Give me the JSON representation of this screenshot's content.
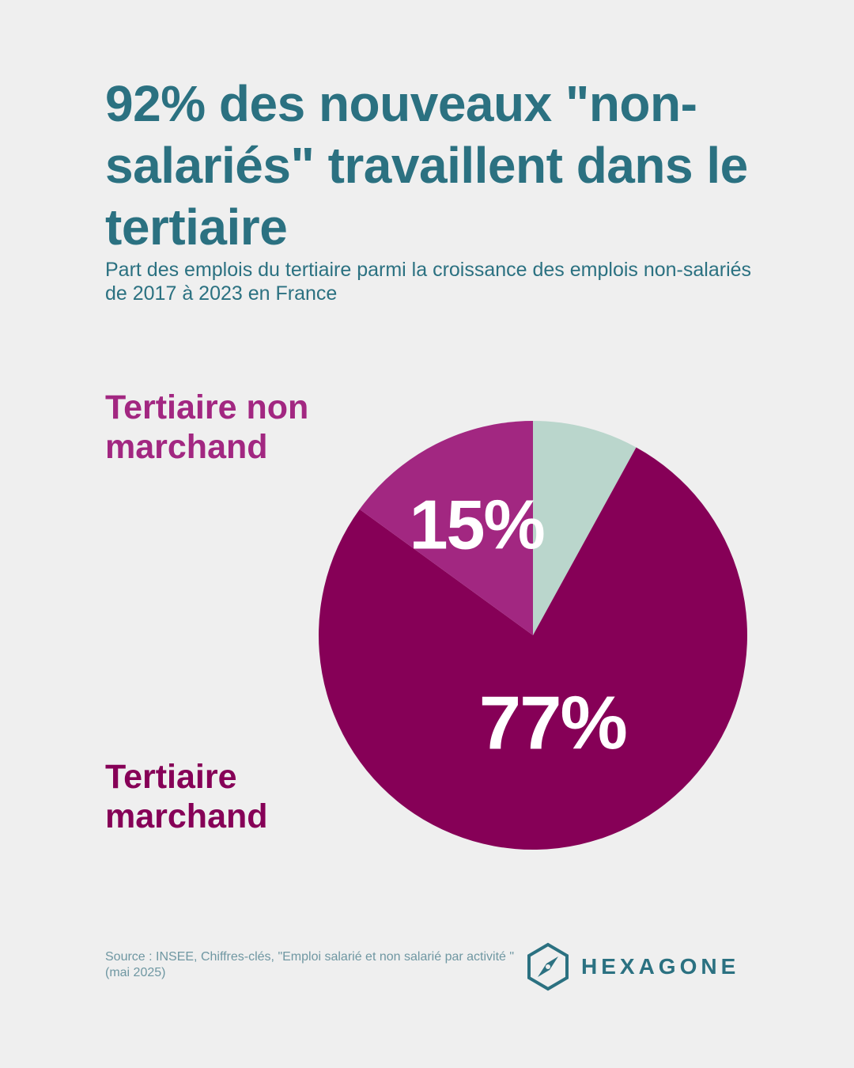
{
  "title": "92% des nouveaux \"non-salariés\" travaillent dans le tertiaire",
  "subtitle": "Part des emplois du tertiaire parmi la croissance des emplois non-salariés de 2017 à 2023 en France",
  "source": "Source : INSEE, Chiffres-clés, \"Emploi salarié et non salarié par activité \"(mai 2025)",
  "brand": {
    "name": "HEXAGONE",
    "icon": "compass-hexagon-icon",
    "color": "#2b7181"
  },
  "chart_data": {
    "type": "pie",
    "start_angle_deg": 0,
    "direction": "clockwise",
    "slices": [
      {
        "name": "",
        "value": 8,
        "label": "",
        "color": "#bad6cc"
      },
      {
        "name": "Tertiaire marchand",
        "value": 77,
        "label": "77%",
        "color": "#860057"
      },
      {
        "name": "Tertiaire non marchand",
        "value": 15,
        "label": "15%",
        "color": "#a22781"
      }
    ]
  }
}
